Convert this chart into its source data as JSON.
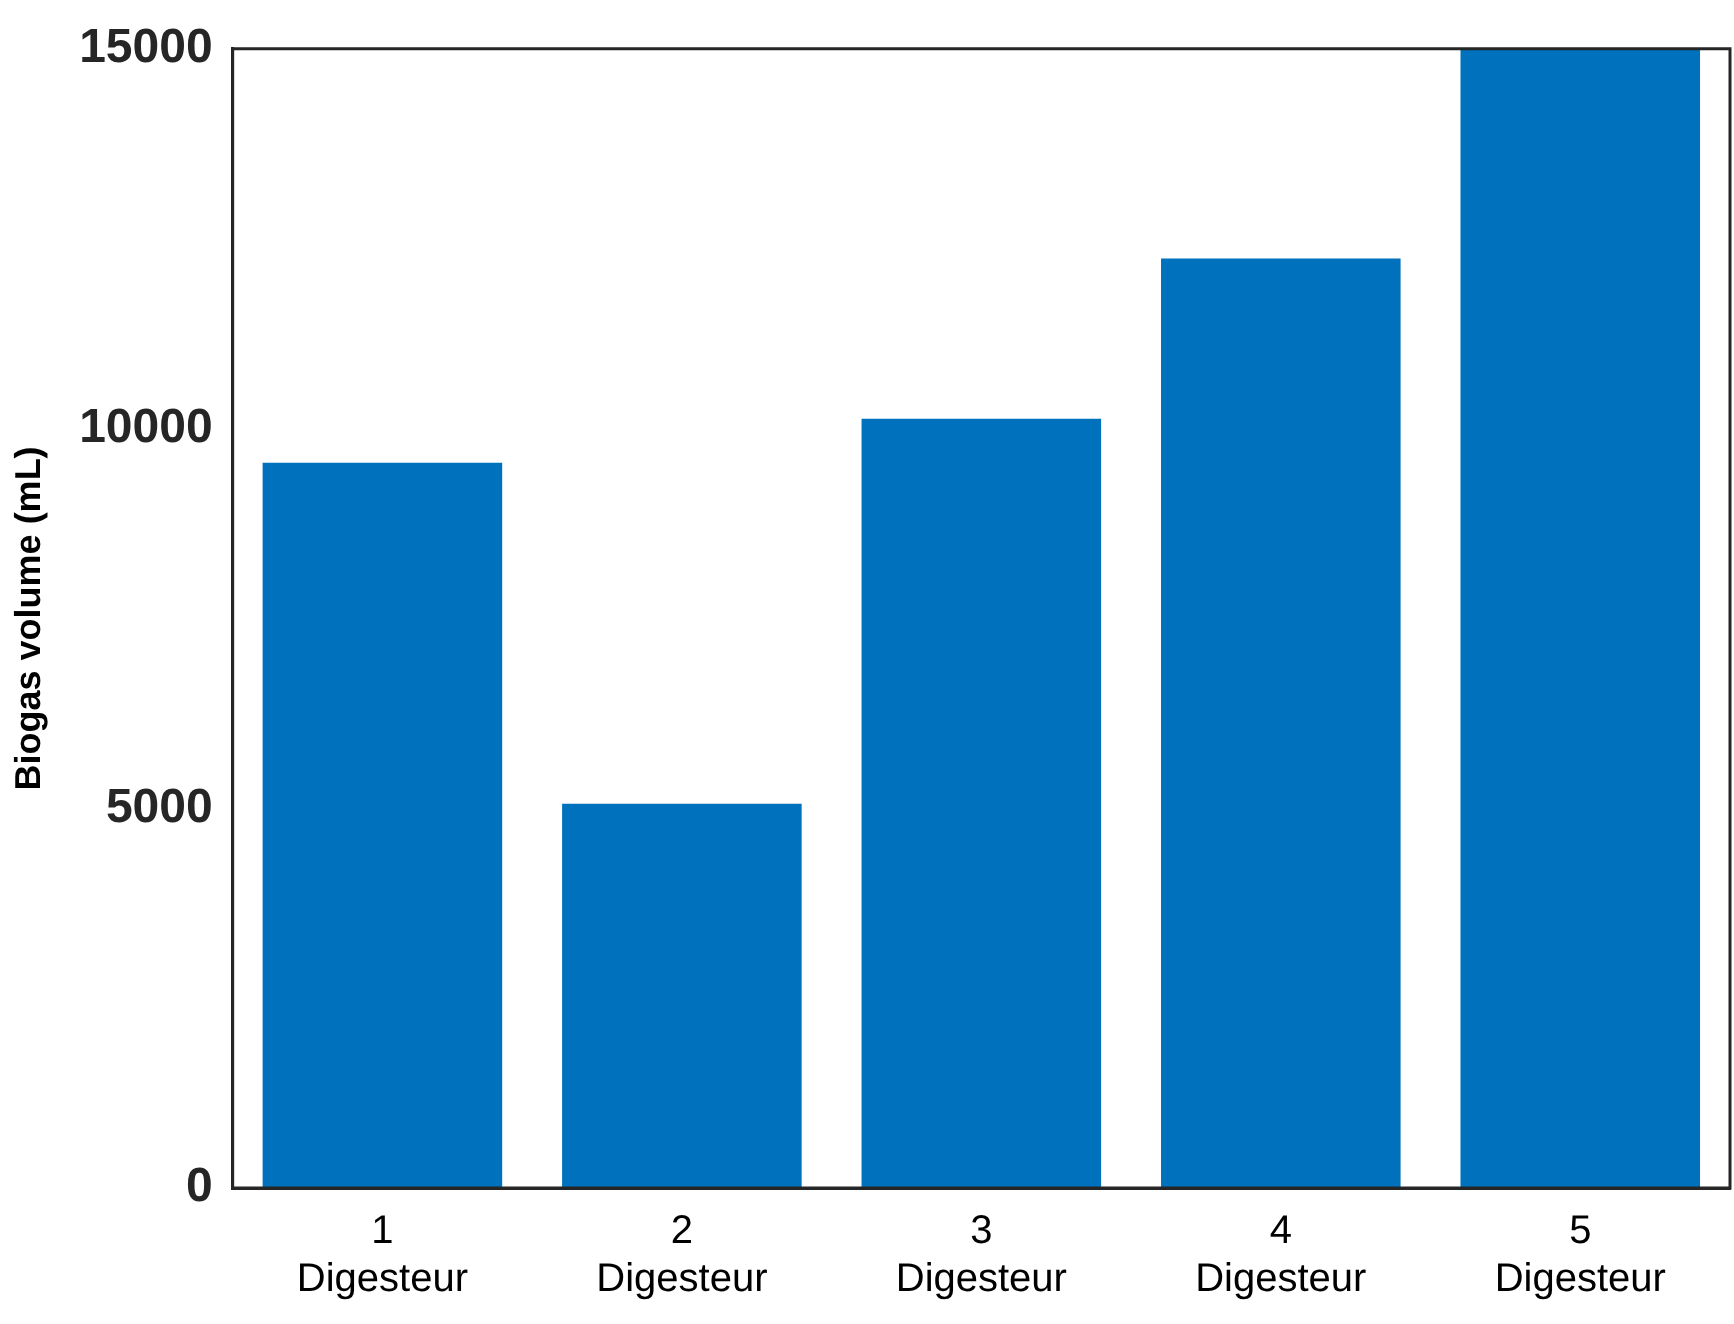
{
  "chart_data": {
    "type": "bar",
    "ylabel": "Biogas volume (mL)",
    "categories": [
      "1\nDigesteur",
      "2\nDigesteur",
      "3\nDigesteur",
      "4\nDigesteur",
      "5\nDigesteur"
    ],
    "values": [
      9550,
      5060,
      10130,
      12240,
      15000
    ],
    "color": "#0072bd",
    "ylim": [
      0,
      15000
    ],
    "yticks": [
      0,
      5000,
      10000,
      15000
    ],
    "grid": false
  }
}
